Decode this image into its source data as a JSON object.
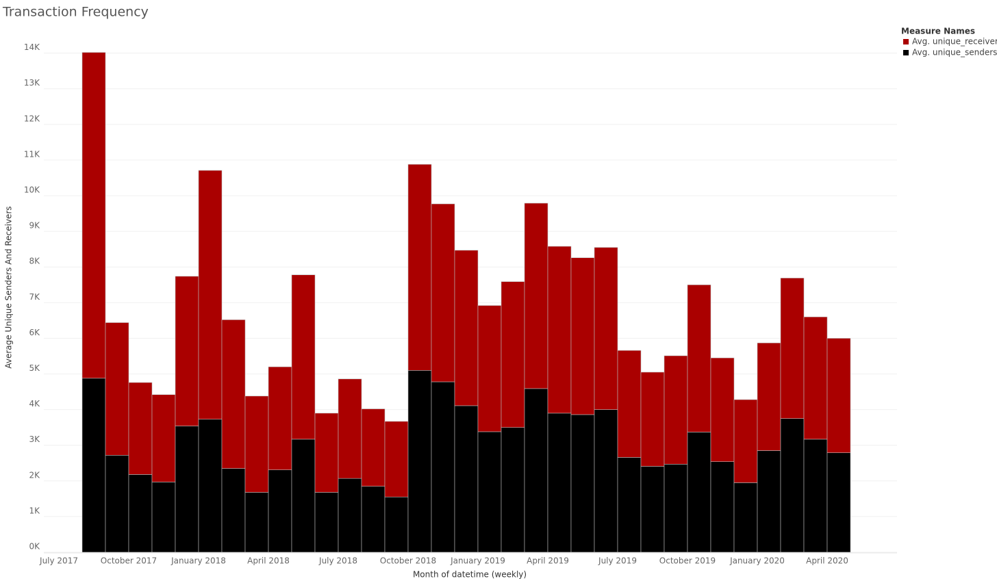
{
  "chart_data": {
    "type": "stacked_bar",
    "title": "Transaction Frequency",
    "x_label": "Month of datetime (weekly)",
    "y_label": "Average Unique Senders And Receivers",
    "legend_title": "Measure Names",
    "legend_position": "top-right",
    "x": [
      "2017-08",
      "2017-09",
      "2017-10",
      "2017-11",
      "2017-12",
      "2018-01",
      "2018-02",
      "2018-03",
      "2018-04",
      "2018-05",
      "2018-06",
      "2018-07",
      "2018-08",
      "2018-09",
      "2018-10",
      "2018-11",
      "2018-12",
      "2019-01",
      "2019-02",
      "2019-03",
      "2019-04",
      "2019-05",
      "2019-06",
      "2019-07",
      "2019-08",
      "2019-09",
      "2019-10",
      "2019-11",
      "2019-12",
      "2020-01",
      "2020-02",
      "2020-03",
      "2020-04"
    ],
    "xlim": [
      "2017-06",
      "2020-07"
    ],
    "xticks": [
      {
        "value": "2017-07",
        "label": "July 2017"
      },
      {
        "value": "2017-10",
        "label": "October 2017"
      },
      {
        "value": "2018-01",
        "label": "January 2018"
      },
      {
        "value": "2018-04",
        "label": "April 2018"
      },
      {
        "value": "2018-07",
        "label": "July 2018"
      },
      {
        "value": "2018-10",
        "label": "October 2018"
      },
      {
        "value": "2019-01",
        "label": "January 2019"
      },
      {
        "value": "2019-04",
        "label": "April 2019"
      },
      {
        "value": "2019-07",
        "label": "July 2019"
      },
      {
        "value": "2019-10",
        "label": "October 2019"
      },
      {
        "value": "2020-01",
        "label": "January 2020"
      },
      {
        "value": "2020-04",
        "label": "April 2020"
      }
    ],
    "series": [
      {
        "name": "Avg. unique_receivers",
        "color": "#aa0000",
        "values": [
          9140,
          3720,
          2580,
          2450,
          4200,
          6980,
          4170,
          2700,
          2890,
          4610,
          2220,
          2790,
          2170,
          2120,
          5780,
          4990,
          4360,
          3540,
          4090,
          5200,
          4680,
          4400,
          4550,
          3000,
          2640,
          3040,
          4130,
          2910,
          2330,
          3020,
          3940,
          3430,
          3210
        ]
      },
      {
        "name": "Avg. unique_senders",
        "color": "#000000",
        "values": [
          4880,
          2720,
          2180,
          1970,
          3540,
          3730,
          2350,
          1680,
          2310,
          3170,
          1680,
          2070,
          1850,
          1550,
          5100,
          4780,
          4110,
          3380,
          3500,
          4590,
          3900,
          3860,
          4000,
          2660,
          2410,
          2470,
          3370,
          2540,
          1950,
          2850,
          3750,
          3170,
          2790
        ]
      }
    ],
    "ylim": [
      0,
      14300
    ],
    "yticks": [
      {
        "value": 0,
        "label": "0K"
      },
      {
        "value": 1000,
        "label": "1K"
      },
      {
        "value": 2000,
        "label": "2K"
      },
      {
        "value": 3000,
        "label": "3K"
      },
      {
        "value": 4000,
        "label": "4K"
      },
      {
        "value": 5000,
        "label": "5K"
      },
      {
        "value": 6000,
        "label": "6K"
      },
      {
        "value": 7000,
        "label": "7K"
      },
      {
        "value": 8000,
        "label": "8K"
      },
      {
        "value": 9000,
        "label": "9K"
      },
      {
        "value": 10000,
        "label": "10K"
      },
      {
        "value": 11000,
        "label": "11K"
      },
      {
        "value": 12000,
        "label": "12K"
      },
      {
        "value": 13000,
        "label": "13K"
      },
      {
        "value": 14000,
        "label": "14K"
      }
    ],
    "grid": true
  }
}
